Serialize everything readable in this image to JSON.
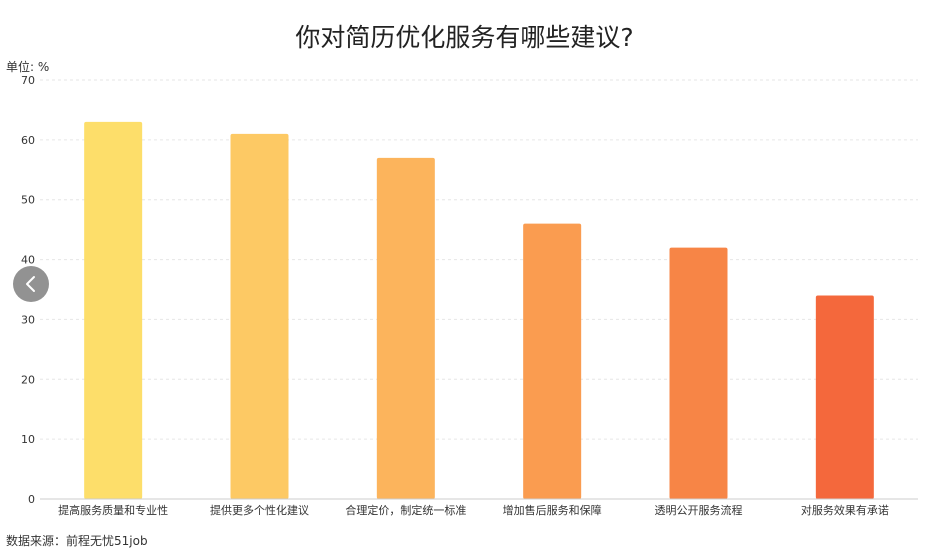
{
  "title": "你对简历优化服务有哪些建议?",
  "unit_label": "单位: %",
  "source_label": "数据来源：前程无忧51job",
  "nav": {
    "prev_icon": "chevron-left-icon"
  },
  "colors": {
    "bars": [
      "#FDDE6A",
      "#FDC964",
      "#FCB45C",
      "#FA9C50",
      "#F78546",
      "#F4683C"
    ],
    "grid": "#e6e6e6",
    "axis": "#cccccc"
  },
  "chart_data": {
    "type": "bar",
    "categories": [
      "提高服务质量和专业性",
      "提供更多个性化建议",
      "合理定价，制定统一标准",
      "增加售后服务和保障",
      "透明公开服务流程",
      "对服务效果有承诺"
    ],
    "values": [
      63,
      61,
      57,
      46,
      42,
      34
    ],
    "ylim": [
      0,
      70
    ],
    "yticks": [
      0,
      10,
      20,
      30,
      40,
      50,
      60,
      70
    ],
    "ylabel": "单位: %",
    "grid": true,
    "legend": "none"
  }
}
